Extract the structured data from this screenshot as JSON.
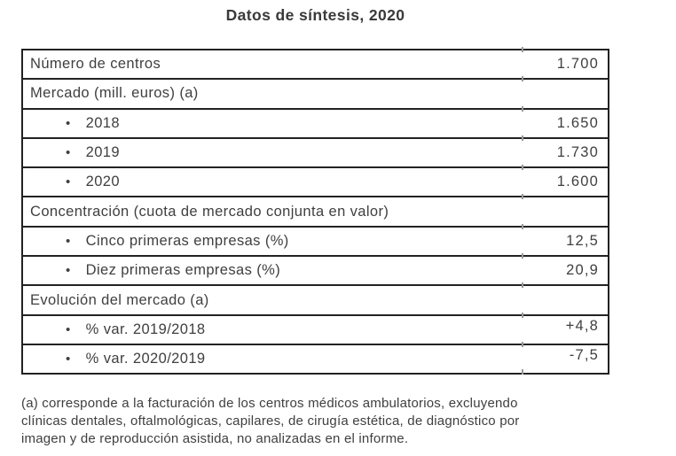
{
  "title": "Datos de síntesis, 2020",
  "table": {
    "bullet_glyph": "•",
    "rows": [
      {
        "type": "item",
        "label": "Número de centros",
        "value": "1.700"
      },
      {
        "type": "section",
        "label": "Mercado (mill. euros) (a)",
        "value": ""
      },
      {
        "type": "bullet",
        "label": "2018",
        "value": "1.650"
      },
      {
        "type": "bullet",
        "label": "2019",
        "value": "1.730"
      },
      {
        "type": "bullet",
        "label": "2020",
        "value": "1.600"
      },
      {
        "type": "section",
        "label": "Concentración (cuota de mercado conjunta en valor)",
        "value": ""
      },
      {
        "type": "bullet",
        "label": "Cinco primeras empresas (%)",
        "value": "12,5"
      },
      {
        "type": "bullet",
        "label": "Diez primeras empresas (%)",
        "value": "20,9"
      },
      {
        "type": "section",
        "label": "Evolución del mercado (a)",
        "value": ""
      },
      {
        "type": "bullet",
        "label": "% var. 2019/2018",
        "value": "+4,8"
      },
      {
        "type": "bullet",
        "label": "% var. 2020/2019",
        "value": "-7,5"
      }
    ]
  },
  "footnote_lines": [
    "(a) corresponde a la facturación de los centros médicos ambulatorios, excluyendo",
    "clínicas dentales, oftalmológicas, capilares, de cirugía estética, de diagnóstico por",
    "imagen y de reproducción asistida, no analizadas en el informe."
  ],
  "colors": {
    "text": "#3f3f3f",
    "border": "#222222",
    "tick": "#9a9a9a",
    "background": "#ffffff"
  }
}
